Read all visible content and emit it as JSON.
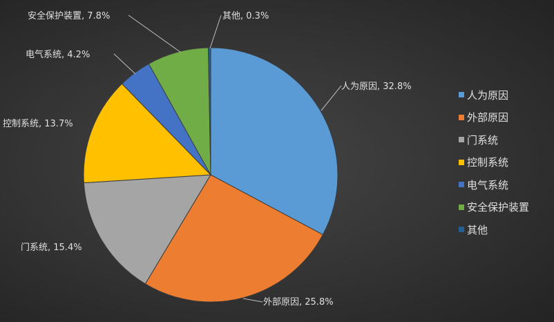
{
  "chart_data": {
    "type": "pie",
    "categories": [
      "人为原因",
      "外部原因",
      "门系统",
      "控制系统",
      "电气系统",
      "安全保护装置",
      "其他"
    ],
    "values": [
      32.8,
      25.8,
      15.4,
      13.7,
      4.2,
      7.8,
      0.3
    ],
    "unit": "%",
    "colors": [
      "#5B9BD5",
      "#ED7D31",
      "#A5A5A5",
      "#FFC000",
      "#4472C4",
      "#70AD47",
      "#255E91"
    ],
    "start": "top",
    "direction": "clockwise",
    "data_labels": [
      "人为原因, 32.8%",
      "外部原因, 25.8%",
      "门系统, 15.4%",
      "控制系统, 13.7%",
      "电气系统, 4.2%",
      "安全保护装置, 7.8%",
      "其他, 0.3%"
    ],
    "legend_position": "right"
  }
}
